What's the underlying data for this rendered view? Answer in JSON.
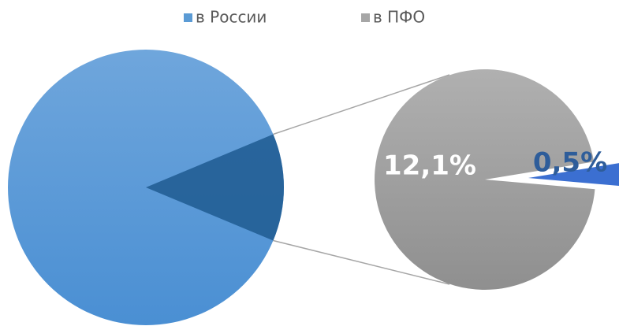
{
  "chart_data": {
    "type": "pie-of-pie",
    "categories": [
      "в России",
      "в ПФО"
    ],
    "colors": [
      "#5b9bd5",
      "#a6a6a6"
    ],
    "values": [
      12.1,
      0.5
    ],
    "value_labels": [
      "12,1%",
      "0,5%"
    ],
    "slice_colors": [
      "#a6a6a6",
      "#3b6fd1"
    ],
    "legend": "top"
  }
}
